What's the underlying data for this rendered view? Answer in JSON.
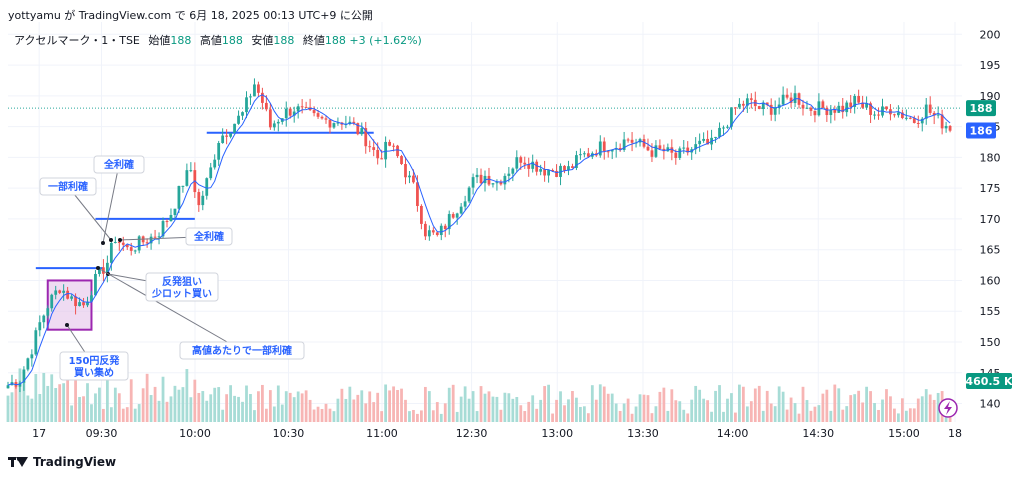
{
  "header": {
    "published_line": "yottyamu が TradingView.com で 6月 18, 2025 00:13 UTC+9 に公開"
  },
  "symbol": {
    "name": "アクセルマーク・1・TSE",
    "open_label": "始値",
    "open_value": "188",
    "high_label": "高値",
    "high_value": "188",
    "low_label": "安値",
    "low_value": "188",
    "close_label": "終値",
    "close_value": "188",
    "change": "+3 (+1.62%)"
  },
  "footer": {
    "brand": "TradingView"
  },
  "colors": {
    "up": "#26a69a",
    "down": "#ef5350",
    "ma": "#2962ff",
    "grid": "#f0f3fa",
    "hline": "#2962ff",
    "box_stroke": "#9c27b0",
    "box_fill": "#e1bee7",
    "price_tag_green": "#089981",
    "price_tag_blue": "#2962ff"
  },
  "chart_data": {
    "type": "candlestick",
    "y_ticks": [
      140,
      145,
      150,
      155,
      160,
      165,
      170,
      175,
      180,
      185,
      190,
      195,
      200
    ],
    "y_range": [
      137,
      202
    ],
    "x_ticks": [
      "17",
      "09:30",
      "10:00",
      "10:30",
      "11:00",
      "12:30",
      "13:00",
      "13:30",
      "14:00",
      "14:30",
      "15:00",
      "18"
    ],
    "price_labels": {
      "last": "188",
      "ma": "186",
      "volume": "460.5 K"
    },
    "dotted_price": 188,
    "close_path": [
      {
        "t": 0,
        "c": 143
      },
      {
        "t": 3,
        "c": 144
      },
      {
        "t": 6,
        "c": 149
      },
      {
        "t": 8,
        "c": 153
      },
      {
        "t": 10,
        "c": 156
      },
      {
        "t": 13,
        "c": 159
      },
      {
        "t": 16,
        "c": 157
      },
      {
        "t": 19,
        "c": 156
      },
      {
        "t": 22,
        "c": 160
      },
      {
        "t": 25,
        "c": 163
      },
      {
        "t": 27,
        "c": 167
      },
      {
        "t": 30,
        "c": 165
      },
      {
        "t": 33,
        "c": 166
      },
      {
        "t": 36,
        "c": 167
      },
      {
        "t": 38,
        "c": 168
      },
      {
        "t": 41,
        "c": 171
      },
      {
        "t": 44,
        "c": 176
      },
      {
        "t": 46,
        "c": 178
      },
      {
        "t": 48,
        "c": 172
      },
      {
        "t": 51,
        "c": 178
      },
      {
        "t": 53,
        "c": 183
      },
      {
        "t": 56,
        "c": 185
      },
      {
        "t": 59,
        "c": 187
      },
      {
        "t": 62,
        "c": 192
      },
      {
        "t": 64,
        "c": 189
      },
      {
        "t": 66,
        "c": 185
      },
      {
        "t": 69,
        "c": 187
      },
      {
        "t": 72,
        "c": 188
      },
      {
        "t": 75,
        "c": 187
      },
      {
        "t": 78,
        "c": 186
      },
      {
        "t": 81,
        "c": 186
      },
      {
        "t": 84,
        "c": 186
      },
      {
        "t": 87,
        "c": 185
      },
      {
        "t": 90,
        "c": 183
      },
      {
        "t": 93,
        "c": 180
      },
      {
        "t": 96,
        "c": 182
      },
      {
        "t": 99,
        "c": 179
      },
      {
        "t": 102,
        "c": 175
      },
      {
        "t": 105,
        "c": 168
      },
      {
        "t": 108,
        "c": 167
      },
      {
        "t": 111,
        "c": 170
      },
      {
        "t": 114,
        "c": 173
      },
      {
        "t": 117,
        "c": 176
      },
      {
        "t": 120,
        "c": 177
      },
      {
        "t": 123,
        "c": 176
      },
      {
        "t": 126,
        "c": 178
      },
      {
        "t": 129,
        "c": 180
      },
      {
        "t": 132,
        "c": 179
      },
      {
        "t": 135,
        "c": 178
      },
      {
        "t": 138,
        "c": 178
      },
      {
        "t": 141,
        "c": 178
      },
      {
        "t": 144,
        "c": 180
      },
      {
        "t": 147,
        "c": 181
      },
      {
        "t": 150,
        "c": 182
      },
      {
        "t": 153,
        "c": 182
      },
      {
        "t": 156,
        "c": 183
      },
      {
        "t": 159,
        "c": 182
      },
      {
        "t": 162,
        "c": 181
      },
      {
        "t": 165,
        "c": 181
      },
      {
        "t": 168,
        "c": 180
      },
      {
        "t": 171,
        "c": 181
      },
      {
        "t": 174,
        "c": 182
      },
      {
        "t": 177,
        "c": 182
      },
      {
        "t": 180,
        "c": 185
      },
      {
        "t": 183,
        "c": 188
      },
      {
        "t": 186,
        "c": 189
      },
      {
        "t": 189,
        "c": 188
      },
      {
        "t": 192,
        "c": 188
      },
      {
        "t": 195,
        "c": 189
      },
      {
        "t": 198,
        "c": 190
      },
      {
        "t": 201,
        "c": 188
      },
      {
        "t": 204,
        "c": 188
      },
      {
        "t": 207,
        "c": 188
      },
      {
        "t": 210,
        "c": 188
      },
      {
        "t": 213,
        "c": 189
      },
      {
        "t": 216,
        "c": 188
      },
      {
        "t": 219,
        "c": 187
      },
      {
        "t": 222,
        "c": 188
      },
      {
        "t": 225,
        "c": 187
      },
      {
        "t": 228,
        "c": 186
      },
      {
        "t": 231,
        "c": 188
      },
      {
        "t": 234,
        "c": 186
      },
      {
        "t": 237,
        "c": 185
      }
    ],
    "horizontal_lines": [
      {
        "y": 184.0,
        "from_t": 50,
        "to_t": 92
      },
      {
        "y": 170.0,
        "from_t": 22,
        "to_t": 47
      },
      {
        "y": 162.0,
        "from_t": 7,
        "to_t": 24
      }
    ],
    "box": {
      "from_t": 10,
      "to_t": 21,
      "low": 152,
      "high": 160
    },
    "annotations": [
      {
        "text": "全利確",
        "name": "annotation-zenrikaku-top"
      },
      {
        "text": "一部利確",
        "name": "annotation-ichibu-rikaku"
      },
      {
        "text": "全利確",
        "name": "annotation-zenrikaku-mid"
      },
      {
        "text": "反発狙い\n少ロット買い",
        "name": "annotation-hanpatsu-nerai"
      },
      {
        "text": "高値あたりで一部利確",
        "name": "annotation-takane-ichibu"
      },
      {
        "text": "150円反発\n買い集め",
        "name": "annotation-150-hanpatsu"
      }
    ]
  }
}
